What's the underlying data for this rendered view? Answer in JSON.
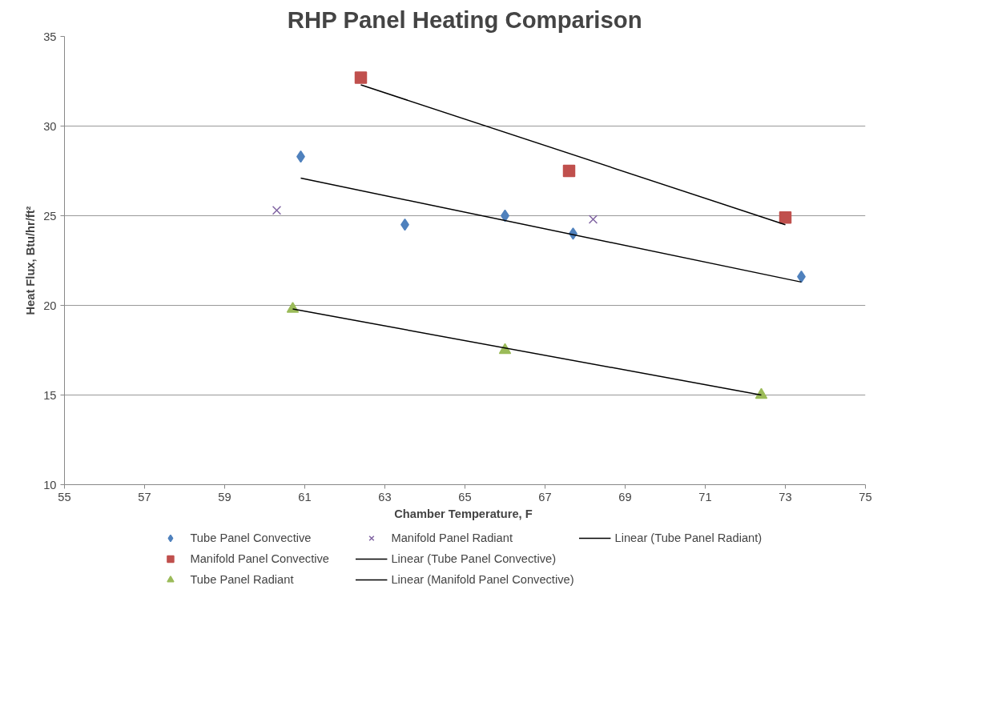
{
  "chart_data": {
    "type": "scatter",
    "title": "RHP Panel Heating Comparison",
    "xlabel": "Chamber Temperature,  F",
    "ylabel": "Heat Flux, Btu/hr/ft²",
    "xlim": [
      55,
      75
    ],
    "xticks": [
      55,
      57,
      59,
      61,
      63,
      65,
      67,
      69,
      71,
      73,
      75
    ],
    "ylim": [
      10,
      35
    ],
    "yticks": [
      10,
      15,
      20,
      25,
      30,
      35
    ],
    "grid": "y",
    "legend": "bottom",
    "series": [
      {
        "name": "Tube Panel Convective",
        "color": "#4f81bd",
        "marker": "diamond",
        "x": [
          60.9,
          63.5,
          66.0,
          67.7,
          73.4
        ],
        "values": [
          28.3,
          24.5,
          25.0,
          24.0,
          21.6
        ]
      },
      {
        "name": "Manifold Panel Convective",
        "color": "#c0504d",
        "marker": "square",
        "x": [
          62.4,
          67.6,
          73.0
        ],
        "values": [
          32.7,
          27.5,
          24.9
        ]
      },
      {
        "name": "Tube Panel Radiant",
        "color": "#9bbb59",
        "marker": "triangle",
        "x": [
          60.7,
          66.0,
          72.4
        ],
        "values": [
          19.8,
          17.5,
          15.0
        ]
      },
      {
        "name": "Manifold Panel Radiant",
        "color": "#8064a2",
        "marker": "cross",
        "x": [
          60.3,
          68.2
        ],
        "values": [
          25.3,
          24.8
        ]
      },
      {
        "name": "Linear (Tube Panel Convective)",
        "type": "line",
        "color": "#000000",
        "marker": "none",
        "x": [
          60.9,
          73.4
        ],
        "values": [
          27.1,
          21.3
        ]
      },
      {
        "name": "Linear (Manifold Panel Convective)",
        "type": "line",
        "color": "#000000",
        "marker": "none",
        "x": [
          62.4,
          73.0
        ],
        "values": [
          32.3,
          24.5
        ]
      },
      {
        "name": "Linear (Tube Panel Radiant)",
        "type": "line",
        "color": "#000000",
        "marker": "none",
        "x": [
          60.7,
          72.4
        ],
        "values": [
          19.8,
          15.0
        ]
      }
    ]
  }
}
